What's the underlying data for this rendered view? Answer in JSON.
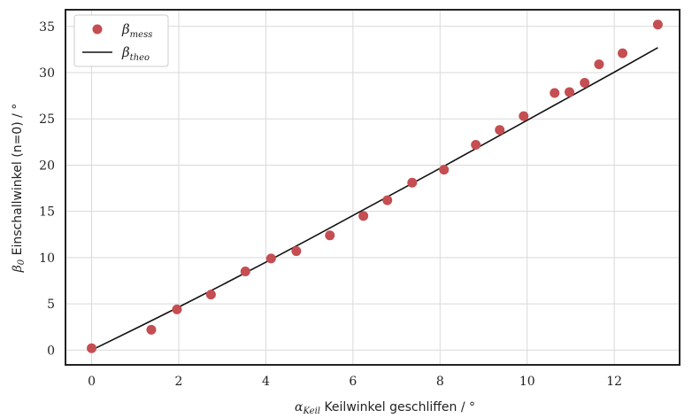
{
  "chart_data": {
    "type": "scatter",
    "xlabel": {
      "symbol": "α",
      "sub": "Keil",
      "text": " Keilwinkel geschliffen / °"
    },
    "ylabel": {
      "symbol": "β",
      "sub": "0",
      "text": " Einschallwinkel (n=0) / °"
    },
    "xlim": [
      -0.6,
      13.5
    ],
    "ylim": [
      -1.6,
      36.8
    ],
    "xticks": [
      0,
      2,
      4,
      6,
      8,
      10,
      12
    ],
    "yticks": [
      0,
      5,
      10,
      15,
      20,
      25,
      30,
      35
    ],
    "grid": true,
    "legend_position": "top-left",
    "series": [
      {
        "name": "β_mess",
        "legend_symbol": "β",
        "legend_sub": "mess",
        "kind": "scatter",
        "color": "#c44e52",
        "x": [
          0.0,
          1.37,
          1.96,
          2.74,
          3.53,
          4.12,
          4.7,
          5.47,
          6.24,
          6.79,
          7.36,
          8.09,
          8.82,
          9.37,
          9.92,
          10.63,
          10.97,
          11.32,
          11.65,
          12.19,
          13.0
        ],
        "y": [
          0.2,
          2.2,
          4.4,
          6.0,
          8.5,
          9.9,
          10.7,
          12.4,
          14.5,
          16.2,
          18.1,
          19.5,
          22.2,
          23.8,
          25.3,
          27.8,
          27.9,
          28.9,
          30.9,
          32.1,
          35.2
        ]
      },
      {
        "name": "β_theo",
        "legend_symbol": "β",
        "legend_sub": "theo",
        "kind": "line",
        "color": "#111111",
        "x": [
          0,
          1,
          2,
          3,
          4,
          5,
          6,
          7,
          8,
          9,
          10,
          11,
          12,
          13
        ],
        "y": [
          0.0,
          2.3,
          4.65,
          7.05,
          9.5,
          12.0,
          14.55,
          17.1,
          19.65,
          22.25,
          24.85,
          27.45,
          30.05,
          32.7
        ]
      }
    ]
  }
}
